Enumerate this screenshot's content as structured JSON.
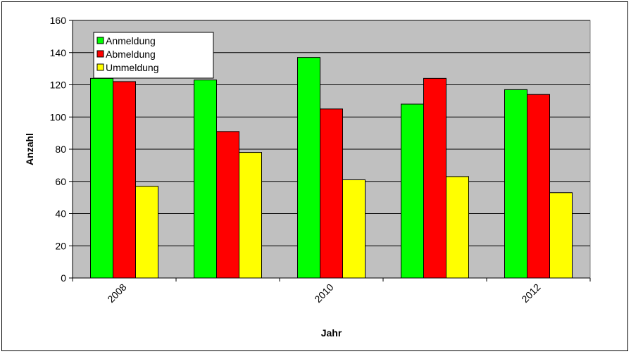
{
  "chart_data": {
    "type": "bar",
    "title": "",
    "xlabel": "Jahr",
    "ylabel": "Anzahl",
    "ylim": [
      0,
      160
    ],
    "yticks": [
      0,
      20,
      40,
      60,
      80,
      100,
      120,
      140,
      160
    ],
    "grid": true,
    "legend_position": "top-left",
    "categories": [
      "2008",
      "",
      "2010",
      "",
      "2012"
    ],
    "series": [
      {
        "name": "Anmeldung",
        "color": "#00ff00",
        "values": [
          124,
          123,
          137,
          108,
          117
        ]
      },
      {
        "name": "Abmeldung",
        "color": "#ff0000",
        "values": [
          122,
          91,
          105,
          124,
          114
        ]
      },
      {
        "name": "Ummeldung",
        "color": "#ffff00",
        "values": [
          57,
          78,
          61,
          63,
          53
        ]
      }
    ],
    "plot_background": "#c0c0c0"
  }
}
